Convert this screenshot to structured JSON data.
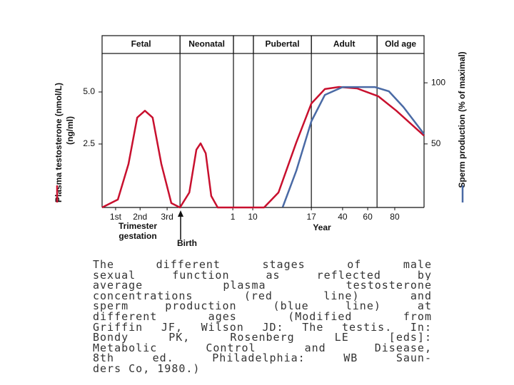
{
  "chart_data": {
    "type": "line",
    "y_label": "Plasma testosterone (nmol/L)",
    "y_label_sub": "(ng/ml)",
    "y2_label": "Sperm production (% of maximal)",
    "x_label": "Year",
    "x_label_left": [
      "Trimester",
      "gestation"
    ],
    "annotation": "Birth",
    "stages": [
      {
        "label": "Fetal",
        "start": 0,
        "end": 24.2
      },
      {
        "label": "Neonatal",
        "start": 24.2,
        "end": 40.8
      },
      {
        "label": null,
        "start": 40.8,
        "end": 47.0
      },
      {
        "label": "Pubertal",
        "start": 47.0,
        "end": 65.0
      },
      {
        "label": "Adult",
        "start": 65.0,
        "end": 85.4
      },
      {
        "label": "Old age",
        "start": 85.4,
        "end": 100
      }
    ],
    "xlim": [
      0,
      100
    ],
    "xticks": [
      {
        "value": 4.2,
        "label": "1st"
      },
      {
        "value": 11.8,
        "label": "2nd"
      },
      {
        "value": 20.2,
        "label": "3rd"
      },
      {
        "value": 40.6,
        "label": "1"
      },
      {
        "value": 46.8,
        "label": "10"
      },
      {
        "value": 65.0,
        "label": "17"
      },
      {
        "value": 74.7,
        "label": "40"
      },
      {
        "value": 82.5,
        "label": "60"
      },
      {
        "value": 90.9,
        "label": "80"
      }
    ],
    "ylim": [
      -0.55,
      6.85
    ],
    "yticks": [
      {
        "value": 2.5,
        "label": "2.5"
      },
      {
        "value": 5,
        "label": "5.0"
      }
    ],
    "y2lim": [
      -2,
      124
    ],
    "y2ticks": [
      50,
      100
    ],
    "series": [
      {
        "name": "Plasma testosterone",
        "color": "#c8102e",
        "x": [
          0,
          4.9,
          8.2,
          10.9,
          13.3,
          15.7,
          18.4,
          21.5,
          24.2,
          27.1,
          29.3,
          30.6,
          32.2,
          33.9,
          35.9,
          50.3,
          54.8,
          60.3,
          65.0,
          69.2,
          73.6,
          79.2,
          85.8,
          91.4,
          100
        ],
        "values": [
          -0.55,
          -0.17,
          1.54,
          3.77,
          4.1,
          3.77,
          1.54,
          -0.34,
          -0.55,
          0.17,
          2.23,
          2.53,
          2.05,
          0,
          -0.55,
          -0.55,
          0.17,
          2.57,
          4.45,
          5.14,
          5.24,
          5.17,
          4.79,
          4.1,
          2.9
        ]
      },
      {
        "name": "Sperm production",
        "color": "#4a6aa5",
        "axis": "y2",
        "x": [
          56.1,
          60.3,
          65.0,
          69.2,
          74.7,
          84.7,
          89.1,
          93.6,
          100
        ],
        "values": [
          -1.7,
          27.9,
          68.6,
          90.1,
          96.5,
          96.5,
          93.0,
          80.2,
          58.1
        ]
      }
    ]
  },
  "caption": [
    "The different stages of male",
    "sexual function as reflected by",
    "average plasma testosterone",
    "concentrations (red line) and",
    "sperm production (blue line) at",
    "different ages (Modified from",
    "Griffin JF, Wilson JD: The testis. In:",
    "Bondy PK, Rosenberg LE [eds]:",
    "Metabolic Control and Disease,",
    "8th ed. Philadelphia: WB Saun-",
    "ders Co, 1980.)"
  ]
}
